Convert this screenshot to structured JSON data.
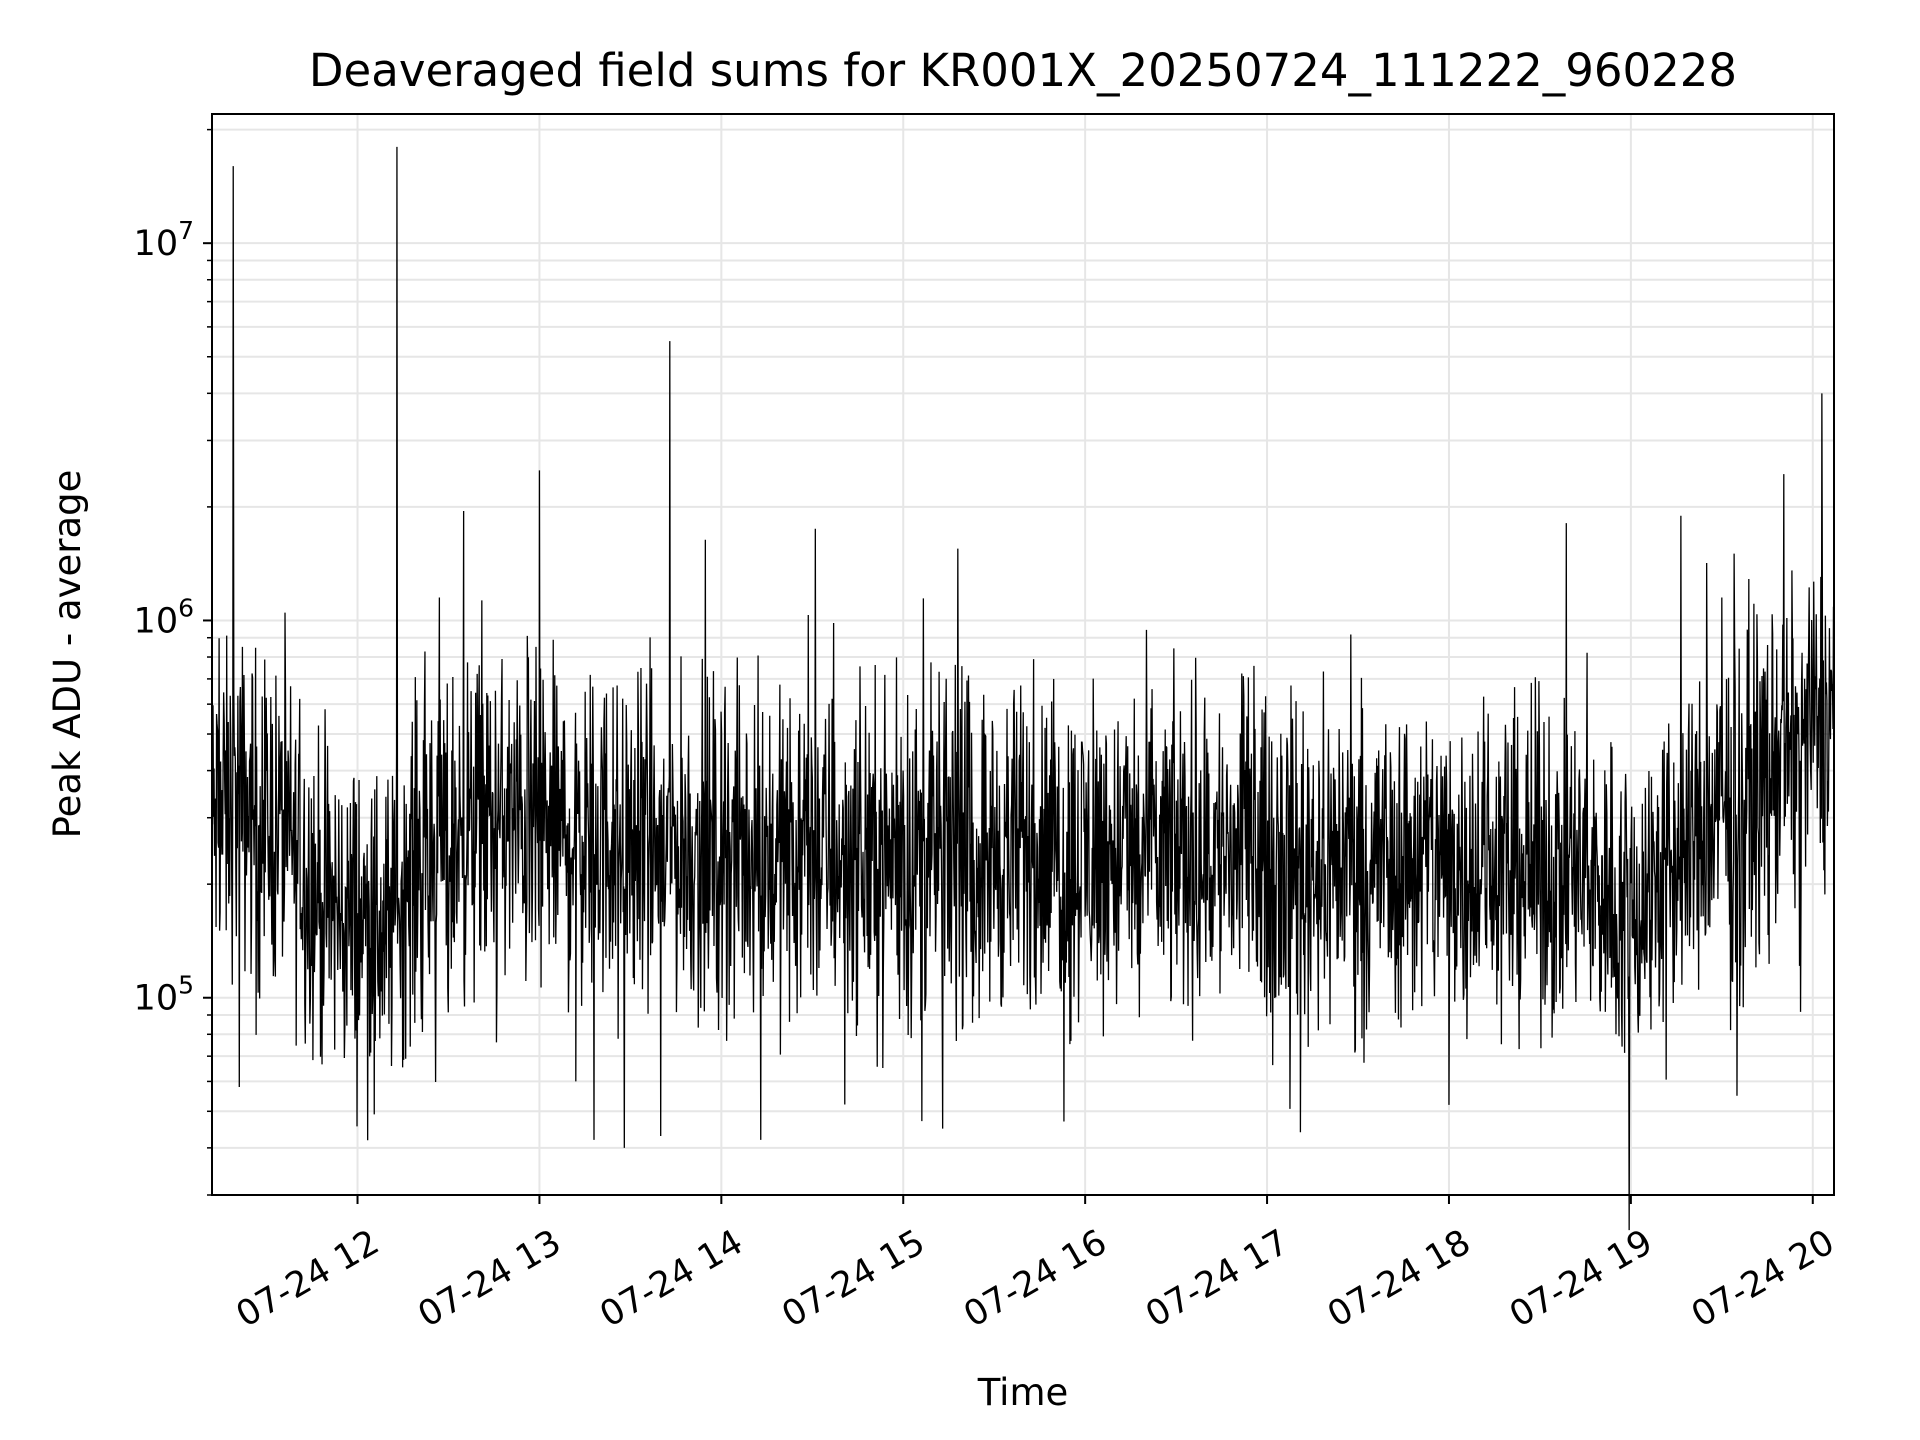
{
  "chart_data": {
    "type": "line",
    "title": "Deaveraged field sums for KR001X_20250724_111222_960228",
    "xlabel": "Time",
    "ylabel": "Peak ADU - average",
    "yscale": "log",
    "ylim": [
      30000,
      22000000
    ],
    "xlim": [
      "2025-07-24 11:12",
      "2025-07-24 20:07"
    ],
    "grid": true,
    "line_color": "#000000",
    "x_ticks": [
      {
        "x": "2025-07-24 12:00",
        "label": "07-24 12"
      },
      {
        "x": "2025-07-24 13:00",
        "label": "07-24 13"
      },
      {
        "x": "2025-07-24 14:00",
        "label": "07-24 14"
      },
      {
        "x": "2025-07-24 15:00",
        "label": "07-24 15"
      },
      {
        "x": "2025-07-24 16:00",
        "label": "07-24 16"
      },
      {
        "x": "2025-07-24 17:00",
        "label": "07-24 17"
      },
      {
        "x": "2025-07-24 18:00",
        "label": "07-24 18"
      },
      {
        "x": "2025-07-24 19:00",
        "label": "07-24 19"
      },
      {
        "x": "2025-07-24 20:00",
        "label": "07-24 20"
      }
    ],
    "y_ticks": [
      {
        "value": 100000,
        "base": "10",
        "exp": "5"
      },
      {
        "value": 1000000,
        "base": "10",
        "exp": "6"
      },
      {
        "value": 10000000,
        "base": "10",
        "exp": "7"
      }
    ],
    "series": [
      {
        "x_start": "2025-07-24 11:12",
        "x_end": "2025-07-24 20:07",
        "baseline": [
          [
            "2025-07-24 11:12",
            280000
          ],
          [
            "2025-07-24 11:20",
            330000
          ],
          [
            "2025-07-24 11:35",
            280000
          ],
          [
            "2025-07-24 11:50",
            170000
          ],
          [
            "2025-07-24 12:10",
            150000
          ],
          [
            "2025-07-24 12:20",
            240000
          ],
          [
            "2025-07-24 12:45",
            290000
          ],
          [
            "2025-07-24 13:30",
            260000
          ],
          [
            "2025-07-24 14:00",
            240000
          ],
          [
            "2025-07-24 16:00",
            240000
          ],
          [
            "2025-07-24 17:00",
            240000
          ],
          [
            "2025-07-24 18:00",
            230000
          ],
          [
            "2025-07-24 18:40",
            220000
          ],
          [
            "2025-07-24 19:00",
            170000
          ],
          [
            "2025-07-24 19:15",
            230000
          ],
          [
            "2025-07-24 19:40",
            360000
          ],
          [
            "2025-07-24 20:07",
            580000
          ]
        ],
        "peaks": [
          [
            "2025-07-24 11:19",
            16000000
          ],
          [
            "2025-07-24 12:13",
            18000000
          ],
          [
            "2025-07-24 12:27",
            1150000
          ],
          [
            "2025-07-24 12:35",
            1950000
          ],
          [
            "2025-07-24 12:41",
            1130000
          ],
          [
            "2025-07-24 12:56",
            910000
          ],
          [
            "2025-07-24 13:00",
            2500000
          ],
          [
            "2025-07-24 13:43",
            5500000
          ],
          [
            "2025-07-24 14:31",
            1750000
          ],
          [
            "2025-07-24 15:18",
            1550000
          ],
          [
            "2025-07-24 15:43",
            790000
          ],
          [
            "2025-07-24 19:25",
            1420000
          ],
          [
            "2025-07-24 19:30",
            1150000
          ],
          [
            "2025-07-24 20:03",
            4000000
          ]
        ],
        "dips": [
          [
            "2025-07-24 11:21",
            58000
          ],
          [
            "2025-07-24 13:12",
            60000
          ],
          [
            "2025-07-24 13:18",
            42000
          ],
          [
            "2025-07-24 13:28",
            40000
          ],
          [
            "2025-07-24 13:40",
            43000
          ],
          [
            "2025-07-24 14:13",
            42000
          ],
          [
            "2025-07-24 15:13",
            45000
          ],
          [
            "2025-07-24 15:53",
            47000
          ],
          [
            "2025-07-24 17:11",
            44000
          ],
          [
            "2025-07-24 18:00",
            52000
          ],
          [
            "2025-07-24 19:35",
            55000
          ]
        ]
      }
    ]
  }
}
